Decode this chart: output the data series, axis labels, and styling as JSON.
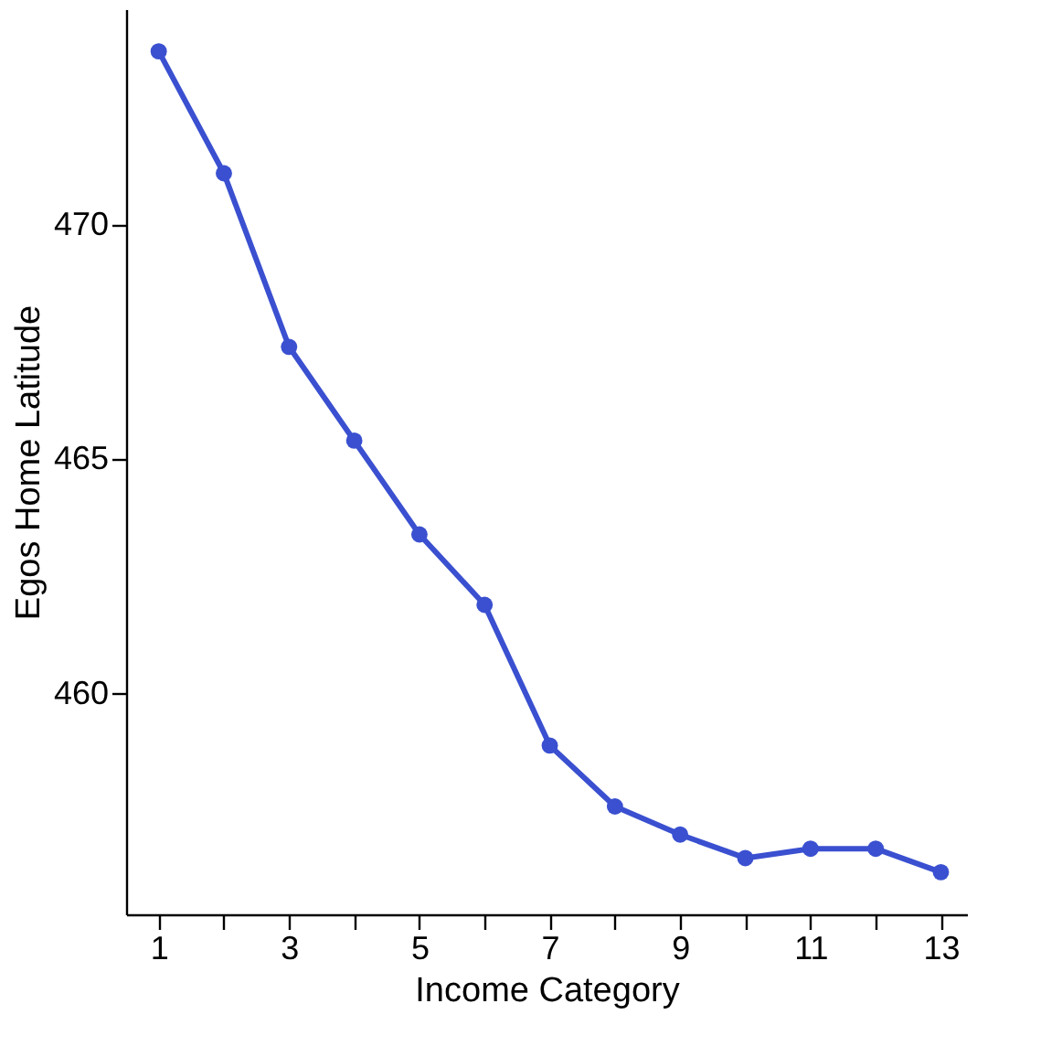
{
  "chart_data": {
    "type": "line",
    "xlabel": "Income Category",
    "ylabel": "Egos Home Latitude",
    "x": [
      1,
      2,
      3,
      4,
      5,
      6,
      7,
      8,
      9,
      10,
      11,
      12,
      13
    ],
    "series": [
      {
        "color": "#3a50d0",
        "values": [
          473.7,
          471.1,
          467.4,
          465.4,
          463.4,
          461.9,
          458.9,
          457.6,
          457.0,
          456.5,
          456.7,
          456.7,
          456.2
        ]
      }
    ],
    "xlim": [
      0.5,
      13.4
    ],
    "ylim": [
      455.3,
      474.6
    ],
    "xticks": [
      1,
      {
        "value": 2,
        "label": null
      },
      3,
      {
        "value": 4,
        "label": null
      },
      5,
      {
        "value": 6,
        "label": null
      },
      7,
      {
        "value": 8,
        "label": null
      },
      9,
      {
        "value": 10,
        "label": null
      },
      11,
      {
        "value": 12,
        "label": null
      },
      13
    ],
    "yticks": [
      460,
      465,
      470
    ],
    "marker": "circle",
    "line_style": "solid",
    "grid": false
  }
}
